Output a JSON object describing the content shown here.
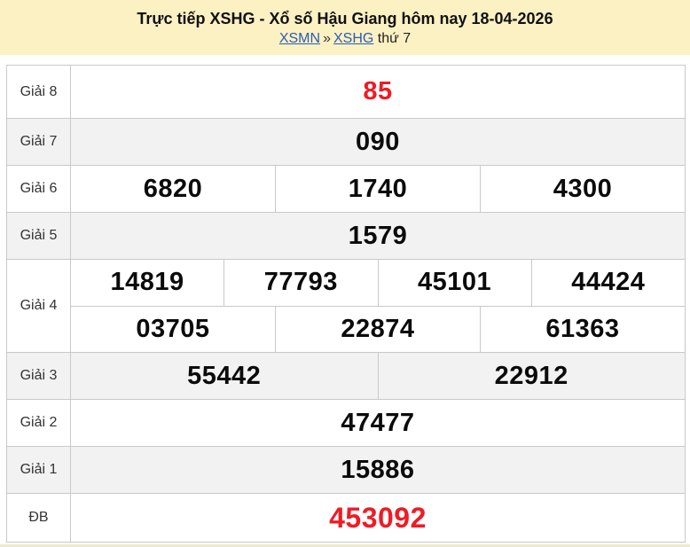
{
  "header": {
    "title": "Trực tiếp XSHG - Xổ số Hậu Giang hôm nay 18-04-2026",
    "breadcrumb": {
      "region_link": "XSMN",
      "separator": "»",
      "province_link": "XSHG",
      "suffix": "thứ 7"
    }
  },
  "colors": {
    "header_bg": "#fcf1c2",
    "link_blue": "#2a5db5",
    "accent_red": "#ee1c25",
    "row_shade": "#f2f2f2",
    "border": "#c9c9c9"
  },
  "results": {
    "rows": [
      {
        "label": "Giải 8",
        "groups": [
          [
            "85"
          ]
        ],
        "highlight": true,
        "size": "std",
        "height": "first"
      },
      {
        "label": "Giải 7",
        "groups": [
          [
            "090"
          ]
        ],
        "highlight": false,
        "size": "std",
        "height": "std"
      },
      {
        "label": "Giải 6",
        "groups": [
          [
            "6820",
            "1740",
            "4300"
          ]
        ],
        "highlight": false,
        "size": "std",
        "height": "std"
      },
      {
        "label": "Giải 5",
        "groups": [
          [
            "1579"
          ]
        ],
        "highlight": false,
        "size": "std",
        "height": "std"
      },
      {
        "label": "Giải 4",
        "groups": [
          [
            "14819",
            "77793",
            "45101",
            "44424"
          ],
          [
            "03705",
            "22874",
            "61363"
          ]
        ],
        "highlight": false,
        "size": "std",
        "height": "dbl"
      },
      {
        "label": "Giải 3",
        "groups": [
          [
            "55442",
            "22912"
          ]
        ],
        "highlight": false,
        "size": "std",
        "height": "std"
      },
      {
        "label": "Giải 2",
        "groups": [
          [
            "47477"
          ]
        ],
        "highlight": false,
        "size": "std",
        "height": "std"
      },
      {
        "label": "Giải 1",
        "groups": [
          [
            "15886"
          ]
        ],
        "highlight": false,
        "size": "std",
        "height": "std"
      },
      {
        "label": "ĐB",
        "groups": [
          [
            "453092"
          ]
        ],
        "highlight": true,
        "size": "lg",
        "height": "last"
      }
    ]
  }
}
